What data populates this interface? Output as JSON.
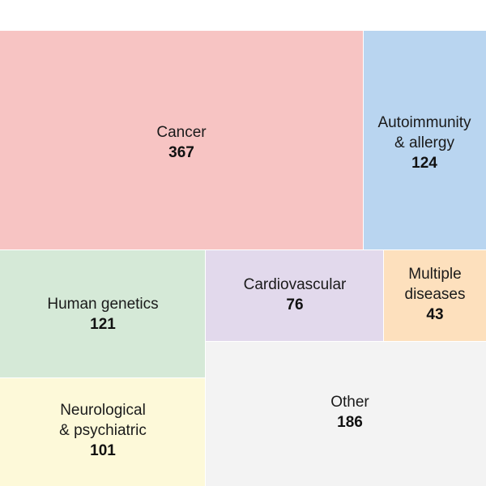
{
  "chart_data": {
    "type": "treemap",
    "title": "",
    "tiles": [
      {
        "name": "Cancer",
        "label_lines": [
          "Cancer"
        ],
        "value": 367,
        "color": "#f7c4c3"
      },
      {
        "name": "Autoimmunity & allergy",
        "label_lines": [
          "Autoimmunity",
          "& allergy"
        ],
        "value": 124,
        "color": "#b9d5f0"
      },
      {
        "name": "Human genetics",
        "label_lines": [
          "Human genetics"
        ],
        "value": 121,
        "color": "#d5e9d7"
      },
      {
        "name": "Cardiovascular",
        "label_lines": [
          "Cardiovascular"
        ],
        "value": 76,
        "color": "#e2d9ec"
      },
      {
        "name": "Multiple diseases",
        "label_lines": [
          "Multiple",
          "diseases"
        ],
        "value": 43,
        "color": "#fde0bd"
      },
      {
        "name": "Other",
        "label_lines": [
          "Other"
        ],
        "value": 186,
        "color": "#f3f3f3"
      },
      {
        "name": "Neurological & psychiatric",
        "label_lines": [
          "Neurological",
          "& psychiatric"
        ],
        "value": 101,
        "color": "#fdf9d9"
      }
    ]
  }
}
